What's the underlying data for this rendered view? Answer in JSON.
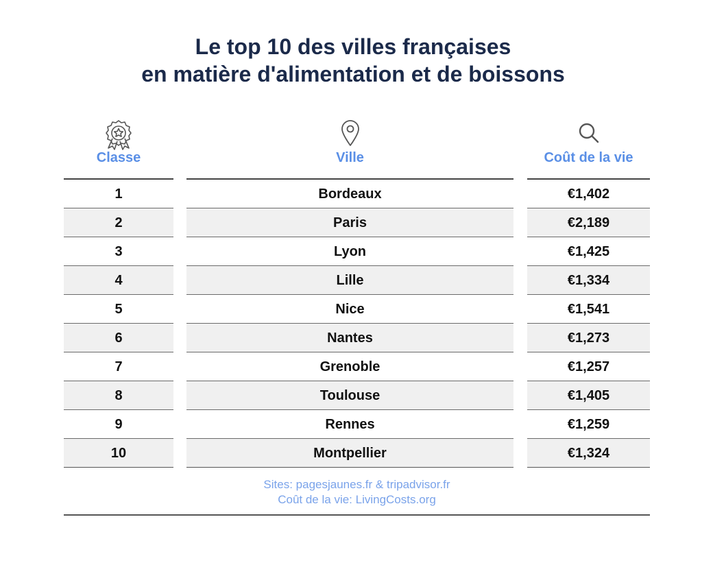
{
  "title": {
    "line1": "Le top 10 des villes françaises",
    "line2": "en matière d'alimentation et de boissons"
  },
  "columns": {
    "rank": {
      "label": "Classe",
      "icon": "award-ribbon-icon"
    },
    "city": {
      "label": "Ville",
      "icon": "location-pin-icon"
    },
    "cost": {
      "label": "Coût de la vie",
      "icon": "search-icon"
    }
  },
  "rows": [
    {
      "rank": "1",
      "city": "Bordeaux",
      "cost": "€1,402"
    },
    {
      "rank": "2",
      "city": "Paris",
      "cost": "€2,189"
    },
    {
      "rank": "3",
      "city": "Lyon",
      "cost": "€1,425"
    },
    {
      "rank": "4",
      "city": "Lille",
      "cost": "€1,334"
    },
    {
      "rank": "5",
      "city": "Nice",
      "cost": "€1,541"
    },
    {
      "rank": "6",
      "city": "Nantes",
      "cost": "€1,273"
    },
    {
      "rank": "7",
      "city": "Grenoble",
      "cost": "€1,257"
    },
    {
      "rank": "8",
      "city": "Toulouse",
      "cost": "€1,405"
    },
    {
      "rank": "9",
      "city": "Rennes",
      "cost": "€1,259"
    },
    {
      "rank": "10",
      "city": "Montpellier",
      "cost": "€1,324"
    }
  ],
  "footer": {
    "sources": "Sites: pagesjaunes.fr & tripadvisor.fr",
    "cost_source": "Coût de la vie: LivingCosts.org"
  },
  "colors": {
    "title": "#1b2a4a",
    "header_label": "#5a8fe6",
    "footer_text": "#7aa3ea",
    "alt_row": "#f0f0f0"
  }
}
